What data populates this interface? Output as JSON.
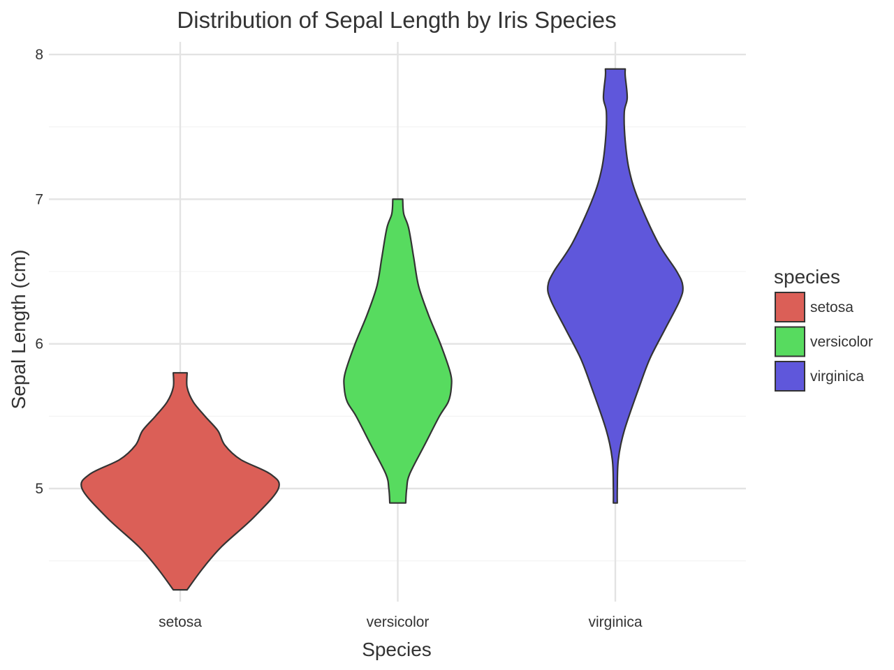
{
  "chart_data": {
    "type": "violin",
    "title": "Distribution of Sepal Length by Iris Species",
    "xlabel": "Species",
    "ylabel": "Sepal Length (cm)",
    "categories": [
      "setosa",
      "versicolor",
      "virginica"
    ],
    "ylim": [
      4.1,
      8.08
    ],
    "yticks": [
      5,
      6,
      7,
      8
    ],
    "grid": true,
    "legend": {
      "title": "species",
      "position": "right",
      "entries": [
        "setosa",
        "versicolor",
        "virginica"
      ]
    },
    "colors": {
      "setosa": "#db5f57",
      "versicolor": "#57db5f",
      "virginica": "#5f57db",
      "outline": "#333333",
      "grid": "#e3e3e3"
    },
    "series": [
      {
        "name": "setosa",
        "min": 4.3,
        "max": 5.8,
        "density": [
          [
            4.3,
            0.07
          ],
          [
            4.45,
            0.23
          ],
          [
            4.6,
            0.42
          ],
          [
            4.8,
            0.74
          ],
          [
            5.0,
            0.99
          ],
          [
            5.1,
            0.91
          ],
          [
            5.2,
            0.61
          ],
          [
            5.3,
            0.45
          ],
          [
            5.4,
            0.38
          ],
          [
            5.5,
            0.25
          ],
          [
            5.6,
            0.13
          ],
          [
            5.7,
            0.07
          ],
          [
            5.8,
            0.07
          ]
        ]
      },
      {
        "name": "versicolor",
        "min": 4.9,
        "max": 7.0,
        "density": [
          [
            4.9,
            0.08
          ],
          [
            5.0,
            0.09
          ],
          [
            5.1,
            0.12
          ],
          [
            5.3,
            0.27
          ],
          [
            5.5,
            0.42
          ],
          [
            5.6,
            0.51
          ],
          [
            5.7,
            0.54
          ],
          [
            5.8,
            0.53
          ],
          [
            6.0,
            0.43
          ],
          [
            6.2,
            0.31
          ],
          [
            6.4,
            0.21
          ],
          [
            6.6,
            0.16
          ],
          [
            6.8,
            0.11
          ],
          [
            6.9,
            0.06
          ],
          [
            7.0,
            0.05
          ]
        ]
      },
      {
        "name": "virginica",
        "min": 4.9,
        "max": 7.9,
        "density": [
          [
            4.9,
            0.02
          ],
          [
            5.0,
            0.02
          ],
          [
            5.2,
            0.03
          ],
          [
            5.4,
            0.09
          ],
          [
            5.7,
            0.24
          ],
          [
            5.9,
            0.35
          ],
          [
            6.1,
            0.5
          ],
          [
            6.3,
            0.65
          ],
          [
            6.4,
            0.68
          ],
          [
            6.5,
            0.62
          ],
          [
            6.7,
            0.43
          ],
          [
            7.0,
            0.23
          ],
          [
            7.2,
            0.14
          ],
          [
            7.4,
            0.1
          ],
          [
            7.6,
            0.09
          ],
          [
            7.7,
            0.12
          ],
          [
            7.85,
            0.1
          ],
          [
            7.9,
            0.1
          ]
        ]
      }
    ]
  }
}
